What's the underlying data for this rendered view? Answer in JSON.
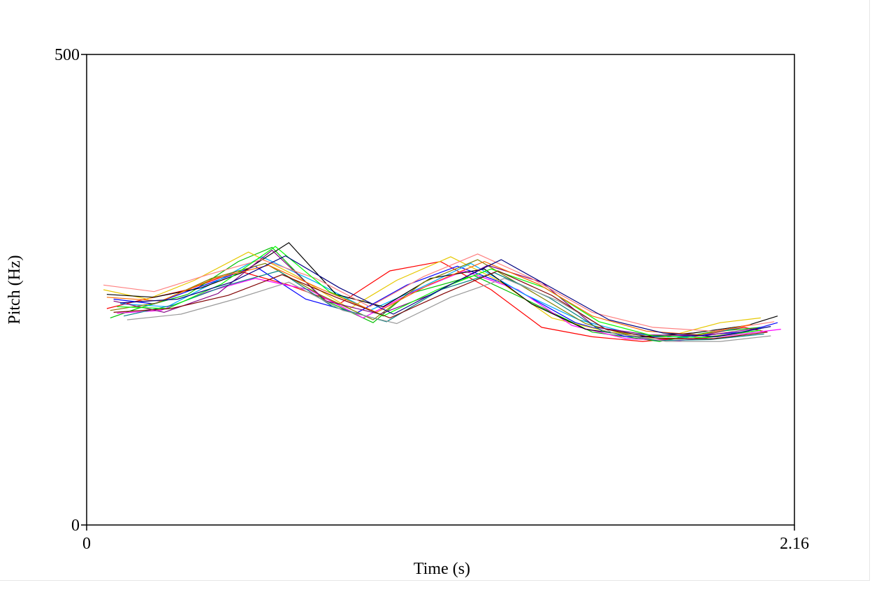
{
  "chart_data": {
    "type": "line",
    "title": "",
    "xlabel": "Time (s)",
    "ylabel": "Pitch (Hz)",
    "xlim": [
      0,
      2.1
    ],
    "ylim": [
      0,
      500
    ],
    "x_ticks": [
      "0"
    ],
    "x_end_label": "2.16",
    "y_ticks": [
      "500",
      "0"
    ],
    "grid": false,
    "legend": "none",
    "series_colors": [
      "#ff0000",
      "#00c000",
      "#0000ff",
      "#e6c800",
      "#ff00ff",
      "#00aaff",
      "#000000",
      "#808000",
      "#800080",
      "#008080",
      "#ff8080",
      "#9a9a9a",
      "#00ff00",
      "#ff6600",
      "#800000",
      "#000080"
    ],
    "series": [
      {
        "x": [
          0.06,
          0.15,
          0.3,
          0.45,
          0.6,
          0.75,
          0.9,
          1.05,
          1.2,
          1.35,
          1.5,
          1.65,
          1.8,
          1.95,
          2.02
        ],
        "y": [
          230,
          238,
          250,
          270,
          255,
          235,
          270,
          280,
          250,
          210,
          200,
          195,
          200,
          210,
          205
        ]
      },
      {
        "x": [
          0.07,
          0.15,
          0.3,
          0.45,
          0.55,
          0.7,
          0.85,
          0.95,
          1.15,
          1.3,
          1.5,
          1.7,
          1.85,
          2.0
        ],
        "y": [
          220,
          230,
          245,
          280,
          295,
          240,
          215,
          245,
          265,
          240,
          205,
          195,
          205,
          210
        ]
      },
      {
        "x": [
          0.08,
          0.2,
          0.35,
          0.5,
          0.65,
          0.8,
          0.95,
          1.1,
          1.25,
          1.45,
          1.6,
          1.75,
          1.95,
          2.05
        ],
        "y": [
          240,
          235,
          255,
          275,
          240,
          225,
          255,
          275,
          255,
          215,
          200,
          200,
          205,
          215
        ]
      },
      {
        "x": [
          0.05,
          0.18,
          0.32,
          0.48,
          0.62,
          0.78,
          0.92,
          1.08,
          1.22,
          1.38,
          1.55,
          1.72,
          1.88,
          2.0
        ],
        "y": [
          250,
          240,
          260,
          290,
          265,
          230,
          260,
          285,
          260,
          220,
          205,
          200,
          215,
          220
        ]
      },
      {
        "x": [
          0.09,
          0.22,
          0.36,
          0.5,
          0.66,
          0.82,
          0.97,
          1.12,
          1.28,
          1.44,
          1.6,
          1.76,
          1.92,
          2.06
        ],
        "y": [
          225,
          228,
          248,
          262,
          250,
          220,
          248,
          270,
          250,
          212,
          198,
          196,
          202,
          208
        ]
      },
      {
        "x": [
          0.1,
          0.24,
          0.38,
          0.52,
          0.68,
          0.84,
          0.99,
          1.14,
          1.3,
          1.46,
          1.62,
          1.78,
          1.94
        ],
        "y": [
          235,
          232,
          258,
          285,
          258,
          228,
          252,
          278,
          245,
          218,
          203,
          199,
          210
        ]
      },
      {
        "x": [
          0.06,
          0.2,
          0.34,
          0.46,
          0.6,
          0.74,
          0.88,
          1.02,
          1.18,
          1.32,
          1.48,
          1.64,
          1.8,
          1.96,
          2.05
        ],
        "y": [
          245,
          242,
          252,
          268,
          300,
          245,
          232,
          262,
          272,
          235,
          208,
          200,
          204,
          212,
          222
        ]
      },
      {
        "x": [
          0.07,
          0.21,
          0.37,
          0.53,
          0.69,
          0.85,
          1.0,
          1.16,
          1.32,
          1.48,
          1.64,
          1.8,
          1.98
        ],
        "y": [
          228,
          236,
          262,
          278,
          245,
          218,
          258,
          282,
          248,
          214,
          199,
          198,
          206
        ]
      },
      {
        "x": [
          0.08,
          0.23,
          0.39,
          0.55,
          0.71,
          0.87,
          1.03,
          1.19,
          1.35,
          1.51,
          1.67,
          1.83,
          1.99
        ],
        "y": [
          238,
          226,
          246,
          292,
          238,
          224,
          246,
          276,
          258,
          210,
          202,
          201,
          209
        ]
      },
      {
        "x": [
          0.11,
          0.26,
          0.41,
          0.57,
          0.73,
          0.89,
          1.05,
          1.21,
          1.37,
          1.53,
          1.69,
          1.85,
          2.01
        ],
        "y": [
          222,
          234,
          254,
          270,
          232,
          216,
          250,
          268,
          242,
          206,
          196,
          197,
          203
        ]
      },
      {
        "x": [
          0.05,
          0.2,
          0.36,
          0.52,
          0.68,
          0.84,
          1.0,
          1.16,
          1.32,
          1.5,
          1.68,
          1.86,
          2.04
        ],
        "y": [
          255,
          248,
          266,
          282,
          262,
          232,
          264,
          288,
          262,
          226,
          210,
          206,
          216
        ]
      },
      {
        "x": [
          0.12,
          0.28,
          0.44,
          0.6,
          0.76,
          0.92,
          1.08,
          1.24,
          1.4,
          1.56,
          1.72,
          1.88,
          2.03
        ],
        "y": [
          218,
          224,
          240,
          258,
          228,
          214,
          242,
          262,
          238,
          204,
          195,
          195,
          201
        ]
      },
      {
        "x": [
          0.09,
          0.24,
          0.4,
          0.56,
          0.72,
          0.88,
          1.04,
          1.2,
          1.36,
          1.52,
          1.68,
          1.84,
          2.0
        ],
        "y": [
          232,
          230,
          256,
          296,
          248,
          222,
          250,
          272,
          252,
          216,
          201,
          199,
          207
        ]
      },
      {
        "x": [
          0.06,
          0.22,
          0.38,
          0.54,
          0.7,
          0.86,
          1.02,
          1.18,
          1.34,
          1.5,
          1.66,
          1.82,
          1.97
        ],
        "y": [
          242,
          238,
          262,
          276,
          250,
          226,
          256,
          280,
          256,
          222,
          206,
          202,
          213
        ]
      },
      {
        "x": [
          0.08,
          0.25,
          0.42,
          0.58,
          0.74,
          0.9,
          1.06,
          1.22,
          1.38,
          1.54,
          1.7,
          1.86,
          2.02
        ],
        "y": [
          226,
          230,
          244,
          266,
          242,
          220,
          246,
          270,
          244,
          208,
          198,
          198,
          205
        ]
      },
      {
        "x": [
          0.1,
          0.27,
          0.43,
          0.59,
          0.75,
          0.91,
          1.07,
          1.23,
          1.39,
          1.55,
          1.71,
          1.87,
          2.03
        ],
        "y": [
          236,
          240,
          258,
          286,
          252,
          224,
          254,
          282,
          250,
          218,
          204,
          200,
          211
        ]
      }
    ]
  }
}
